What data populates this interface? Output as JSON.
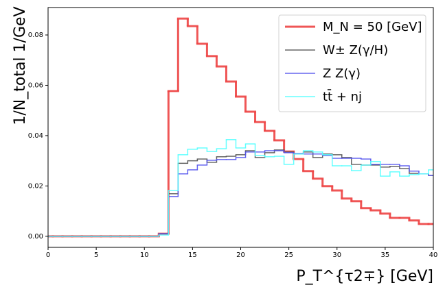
{
  "chart_data": {
    "type": "histogram",
    "xlabel": "P_T^{τ2∓}  [GeV]",
    "ylabel": "1/N_total 1/GeV",
    "bins": [
      -0.5,
      0.5,
      1.5,
      2.5,
      3.5,
      4.5,
      5.5,
      6.5,
      7.5,
      8.5,
      9.5,
      10.5,
      11.5,
      12.5,
      13.5,
      14.5,
      15.5,
      16.5,
      17.5,
      18.5,
      19.5,
      20.5,
      21.5,
      22.5,
      23.5,
      24.5,
      25.5,
      26.5,
      27.5,
      28.5,
      29.5,
      30.5,
      31.5,
      32.5,
      33.5,
      34.5,
      35.5,
      36.5,
      37.5,
      38.5,
      39.5,
      40.5
    ],
    "series": [
      {
        "name": "M_N = 50 [GeV]",
        "color": "#ee4444",
        "width": 3,
        "values": [
          0,
          0,
          0,
          0,
          0,
          0,
          0,
          0,
          0,
          0,
          0,
          0,
          0.001,
          0.0577,
          0.0865,
          0.0835,
          0.0765,
          0.0716,
          0.0675,
          0.0615,
          0.0555,
          0.0495,
          0.0454,
          0.0419,
          0.0381,
          0.0337,
          0.0307,
          0.0259,
          0.0229,
          0.0199,
          0.0182,
          0.015,
          0.0139,
          0.0112,
          0.0103,
          0.009,
          0.0073,
          0.0073,
          0.0063,
          0.0049,
          0.0049
        ]
      },
      {
        "name": "W± Z(γ/H)",
        "color": "#555555",
        "width": 1.5,
        "values": [
          0,
          0,
          0,
          0,
          0,
          0,
          0,
          0,
          0,
          0,
          0,
          0,
          0.001,
          0.0169,
          0.029,
          0.03,
          0.0307,
          0.0294,
          0.0316,
          0.0318,
          0.0324,
          0.034,
          0.0313,
          0.0332,
          0.0343,
          0.0335,
          0.0327,
          0.0335,
          0.0313,
          0.0327,
          0.0324,
          0.0313,
          0.0286,
          0.0283,
          0.0283,
          0.0275,
          0.0278,
          0.0269,
          0.025,
          0.0248,
          0.0242
        ]
      },
      {
        "name": "Z Z(γ)",
        "color": "#5555ee",
        "width": 1.5,
        "values": [
          0,
          0,
          0,
          0,
          0,
          0,
          0,
          0,
          0,
          0,
          0,
          0,
          0.001,
          0.0158,
          0.0248,
          0.0264,
          0.0283,
          0.0302,
          0.0305,
          0.0305,
          0.0313,
          0.0335,
          0.0335,
          0.034,
          0.034,
          0.0332,
          0.0329,
          0.0327,
          0.0327,
          0.0321,
          0.031,
          0.031,
          0.031,
          0.0307,
          0.0286,
          0.0286,
          0.0286,
          0.028,
          0.0259,
          0.0248,
          0.0242
        ]
      },
      {
        "name": "tt̄ + nj",
        "color": "#55ffff",
        "width": 1.5,
        "values": [
          0,
          0,
          0,
          0,
          0,
          0,
          0,
          0,
          0,
          0,
          0,
          0,
          0.0005,
          0.0182,
          0.0324,
          0.0346,
          0.0351,
          0.0337,
          0.0348,
          0.0384,
          0.0351,
          0.0367,
          0.0321,
          0.0316,
          0.0318,
          0.0286,
          0.0327,
          0.034,
          0.0335,
          0.0324,
          0.028,
          0.028,
          0.0261,
          0.0283,
          0.0297,
          0.0239,
          0.0256,
          0.0239,
          0.0245,
          0.0248,
          0.0264
        ]
      }
    ],
    "xlim": [
      0,
      40
    ],
    "xticks": [
      0,
      5,
      10,
      15,
      20,
      25,
      30,
      35,
      40
    ],
    "ylim": [
      -0.0044,
      0.0909
    ],
    "yticks": [
      {
        "value": 0,
        "label": "0.00"
      },
      {
        "value": 0.02,
        "label": "0.02"
      },
      {
        "value": 0.04,
        "label": "0.04"
      },
      {
        "value": 0.06,
        "label": "0.06"
      },
      {
        "value": 0.08,
        "label": "0.08"
      }
    ],
    "legend": "upper right"
  }
}
